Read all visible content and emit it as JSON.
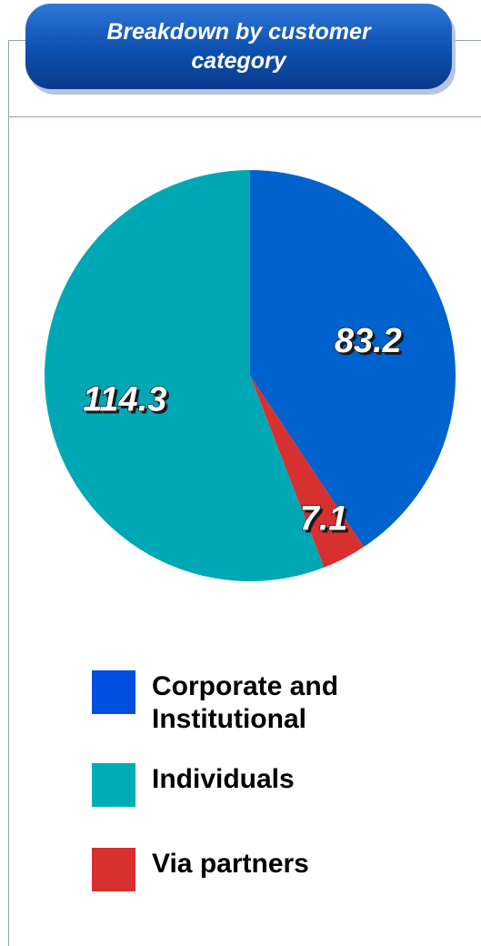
{
  "header": {
    "title": "Breakdown by customer category"
  },
  "chart_data": {
    "type": "pie",
    "title": "",
    "slices": [
      {
        "label": "Corporate and Institutional",
        "value": 83.2,
        "color": "#0062cc"
      },
      {
        "label": "Via partners",
        "value": 7.1,
        "color": "#d8302f"
      },
      {
        "label": "Individuals",
        "value": 114.3,
        "color": "#00a8b5"
      }
    ],
    "legend": {
      "placement": "bottom",
      "items": [
        {
          "label": "Corporate and Institutional",
          "color": "#0050e0"
        },
        {
          "label": "Individuals",
          "color": "#00adb5"
        },
        {
          "label": "Via partners",
          "color": "#d8302f"
        }
      ]
    },
    "start": "top",
    "direction": "clockwise"
  }
}
